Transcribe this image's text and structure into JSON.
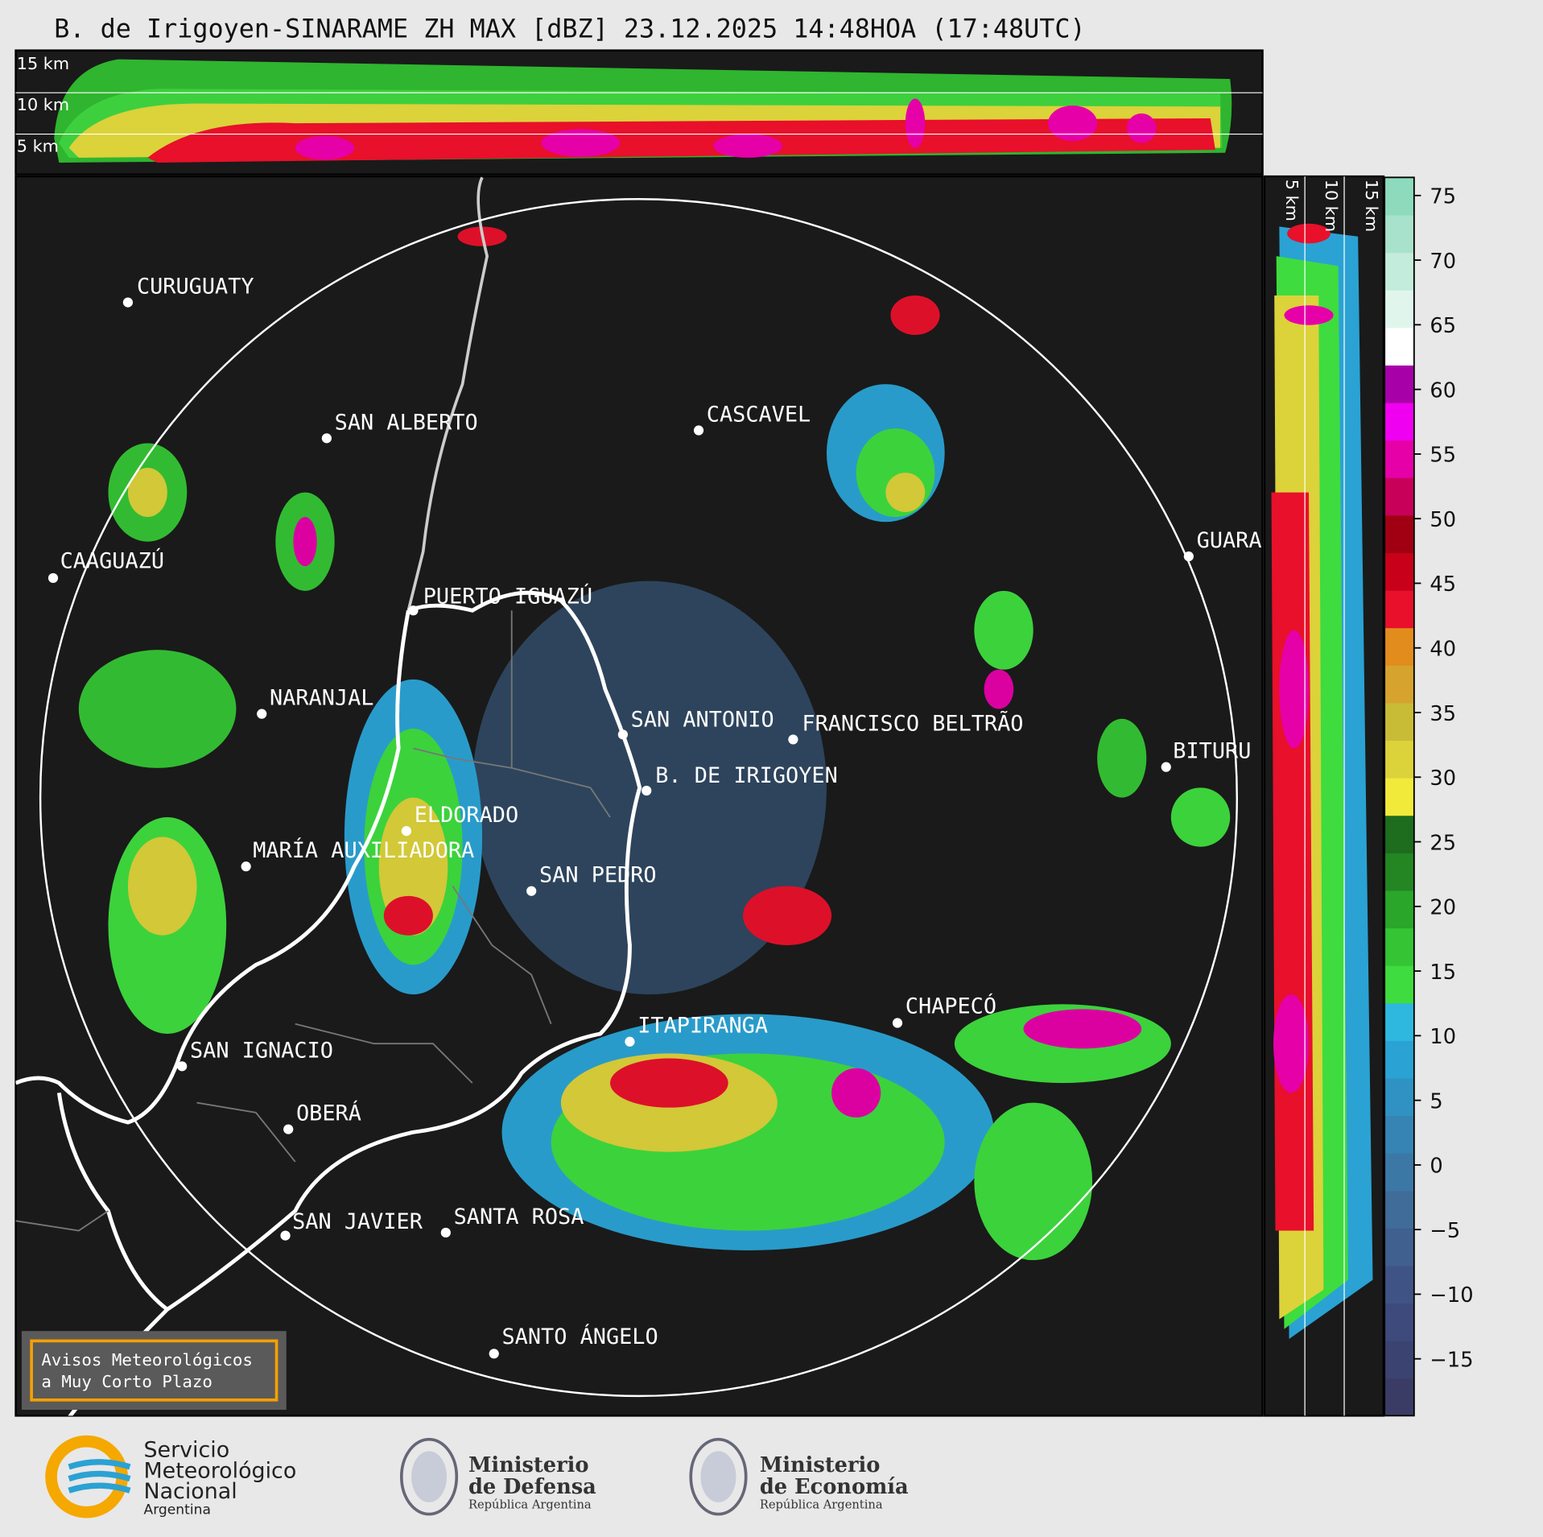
{
  "title": "B. de Irigoyen-SINARAME ZH MAX [dBZ] 23.12.2025 14:48HOA (17:48UTC)",
  "height_labels": {
    "top": [
      "15 km",
      "10 km",
      "5 km"
    ],
    "side": [
      "5 km",
      "10 km",
      "15 km"
    ]
  },
  "cities": [
    "CURUGUATY",
    "SAN ALBERTO",
    "CASCAVEL",
    "CAAGUAZÚ",
    "GUARA",
    "PUERTO IGUAZÚ",
    "NARANJAL",
    "SAN ANTONIO",
    "FRANCISCO BELTRÃO",
    "BITURU",
    "B. DE IRIGOYEN",
    "ELDORADO",
    "MARÍA AUXILIADORA",
    "SAN PEDRO",
    "CHAPECÓ",
    "ITAPIRANGA",
    "SAN IGNACIO",
    "OBERÁ",
    "SAN JAVIER",
    "SANTA ROSA",
    "SANTO ÁNGELO"
  ],
  "colorbar": {
    "range": [
      -19.4,
      76.4
    ],
    "ticks": [
      {
        "value": -15,
        "label": "−15"
      },
      {
        "value": -10,
        "label": "−10"
      },
      {
        "value": -5,
        "label": "−5"
      },
      0,
      5,
      10,
      15,
      20,
      25,
      30,
      35,
      40,
      45,
      50,
      55,
      60,
      65,
      70,
      75
    ],
    "colors": [
      "#3a3c66",
      "#3b4371",
      "#3d4a7b",
      "#3f5485",
      "#40608f",
      "#3f6c99",
      "#3c78a6",
      "#3584b4",
      "#2f92c2",
      "#2aa2d4",
      "#2eb8e0",
      "#3edc3e",
      "#34c434",
      "#2aa62a",
      "#238623",
      "#1e6c1e",
      "#f2ea3a",
      "#dcd23a",
      "#c8bc36",
      "#d6a42e",
      "#e28c1e",
      "#e8102a",
      "#c8001a",
      "#a00012",
      "#c8005a",
      "#e600a8",
      "#f000f0",
      "#a800a8",
      "#ffffff",
      "#e0f6ec",
      "#c4ecdc",
      "#a8e2cc",
      "#8edabc"
    ]
  },
  "notice": [
    "Avisos Meteorológicos",
    "a Muy Corto Plazo"
  ],
  "logos": [
    {
      "lines": [
        "Servicio",
        "Meteorológico",
        "Nacional",
        "Argentina"
      ]
    },
    {
      "lines": [
        "Ministerio",
        "de Defensa",
        "República Argentina"
      ]
    },
    {
      "lines": [
        "Ministerio",
        "de Economía",
        "República Argentina"
      ]
    }
  ]
}
